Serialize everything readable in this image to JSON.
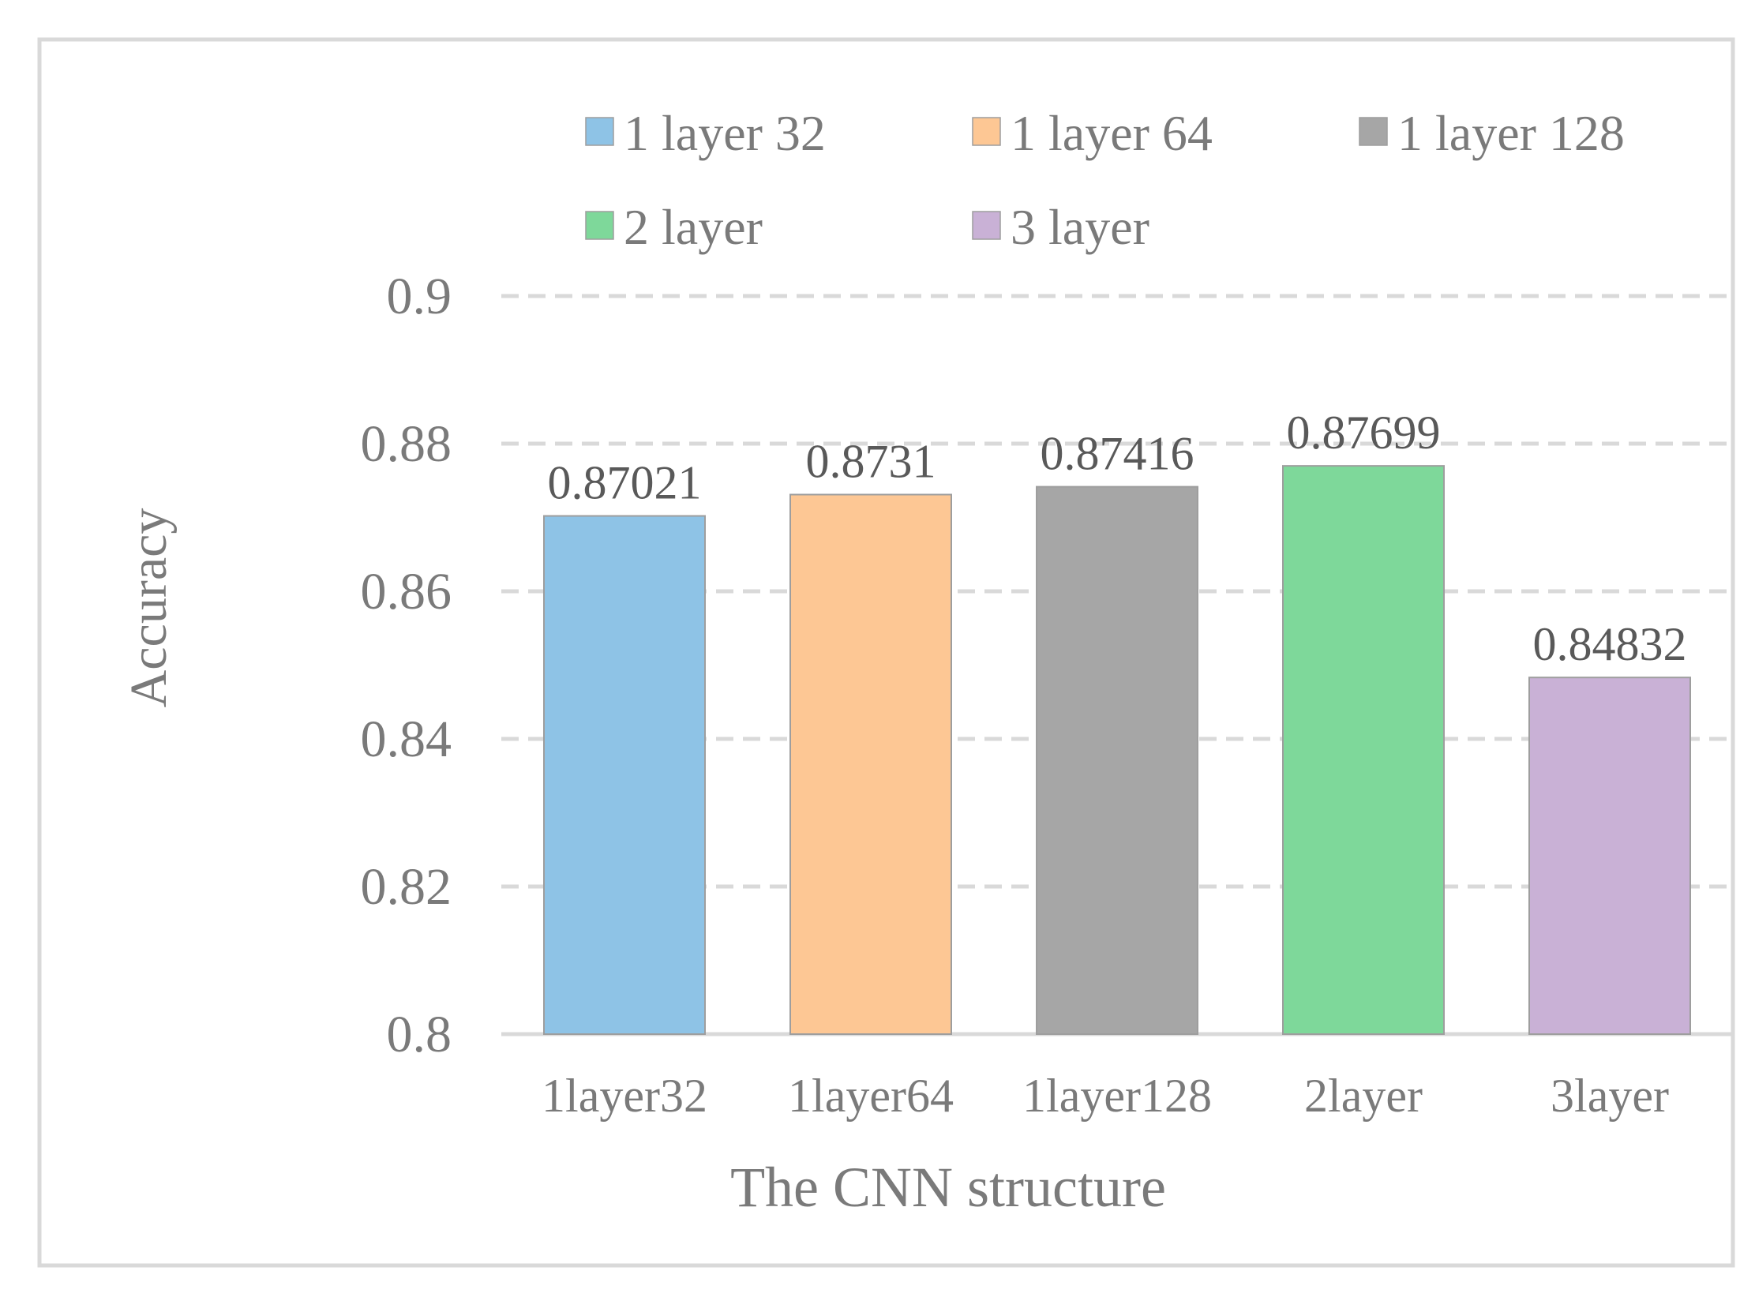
{
  "chart_data": {
    "type": "bar",
    "categories": [
      "1layer32",
      "1layer64",
      "1layer128",
      "2layer",
      "3layer"
    ],
    "values": [
      0.87021,
      0.8731,
      0.87416,
      0.87699,
      0.84832
    ],
    "data_labels": [
      "0.87021",
      "0.8731",
      "0.87416",
      "0.87699",
      "0.84832"
    ],
    "legend": [
      "1 layer 32",
      "1 layer 64",
      "1 layer 128",
      "2 layer",
      "3 layer"
    ],
    "colors": [
      "#8ec3e6",
      "#fdc794",
      "#a6a6a6",
      "#7ed89a",
      "#c9b1d6"
    ],
    "title": "",
    "xlabel": "The CNN structure",
    "ylabel": "Accuracy",
    "ylim": [
      0.8,
      0.9
    ],
    "yticks": [
      0.8,
      0.82,
      0.84,
      0.86,
      0.88,
      0.9
    ],
    "ytick_labels": [
      "0.8",
      "0.82",
      "0.84",
      "0.86",
      "0.88",
      "0.9"
    ],
    "grid": true,
    "grid_style": "dashed",
    "legend_position": "top"
  }
}
